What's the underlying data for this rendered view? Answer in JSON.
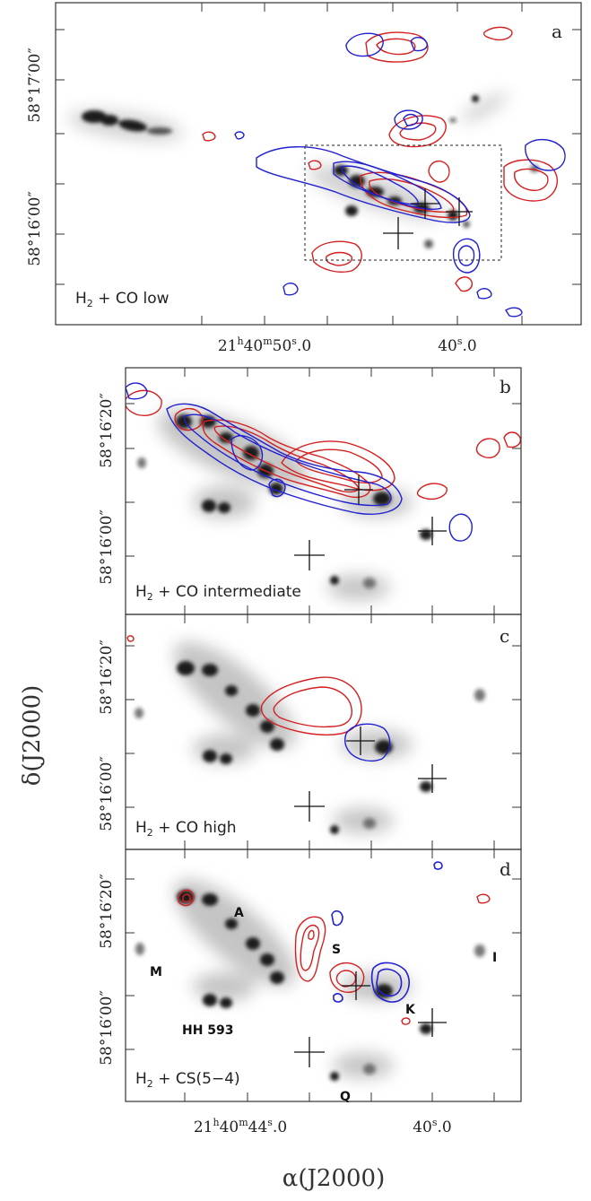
{
  "chart_data": [
    {
      "type": "contour",
      "panel": "a",
      "caption": "H₂ + CO low",
      "x_ticks": [
        {
          "ra_s": 50.0,
          "label": "21h40m50ˢ.0"
        },
        {
          "ra_s": 40.0,
          "label": "40ˢ.0"
        }
      ],
      "y_ticks": [
        {
          "dec_s": 60,
          "label": "58°17′00″"
        },
        {
          "dec_s": 0,
          "label": "58°16′00″"
        }
      ],
      "has_zoom_box": true,
      "contour_colors": [
        "#d42020",
        "#2020d0"
      ]
    },
    {
      "type": "contour",
      "panel": "b",
      "caption": "H₂ + CO intermediate",
      "y_ticks": [
        {
          "dec_s": 20,
          "label": "58°16′20″"
        },
        {
          "dec_s": 0,
          "label": "58°16′00″"
        }
      ]
    },
    {
      "type": "contour",
      "panel": "c",
      "caption": "H₂ + CO high",
      "y_ticks": [
        {
          "dec_s": 20,
          "label": "58°16′20″"
        },
        {
          "dec_s": 0,
          "label": "58°16′00″"
        }
      ]
    },
    {
      "type": "contour",
      "panel": "d",
      "caption": "H₂ + CS(5−4)",
      "x_ticks": [
        {
          "ra_s": 44.0,
          "label": "21h40m44ˢ.0"
        },
        {
          "ra_s": 40.0,
          "label": "40ˢ.0"
        }
      ],
      "y_ticks": [
        {
          "dec_s": 20,
          "label": "58°16′20″"
        },
        {
          "dec_s": 0,
          "label": "58°16′00″"
        }
      ],
      "source_labels": [
        "A",
        "M",
        "S",
        "K",
        "I",
        "HH 593",
        "Q"
      ]
    }
  ],
  "axes": {
    "xlabel": "α(J2000)",
    "ylabel": "δ(J2000)"
  },
  "panels": {
    "a": {
      "letter": "a",
      "caption_main": "H",
      "caption_sub": "2",
      "caption_rest": " + CO low",
      "xtick_1_hm": "21",
      "xtick_1_h": "h",
      "xtick_1_m": "40",
      "xtick_1_mm": "m",
      "xtick_1_s": "50",
      "xtick_1_ss": "s",
      "xtick_1_f": ".0",
      "xtick_2_s": "40",
      "xtick_2_ss": "s",
      "xtick_2_f": ".0",
      "ytick_1": "58°17′00″",
      "ytick_2": "58°16′00″"
    },
    "b": {
      "letter": "b",
      "caption_main": "H",
      "caption_sub": "2",
      "caption_rest": " + CO intermediate",
      "ytick_1": "58°16′20″",
      "ytick_2": "58°16′00″"
    },
    "c": {
      "letter": "c",
      "caption_main": "H",
      "caption_sub": "2",
      "caption_rest": " + CO high",
      "ytick_1": "58°16′20″",
      "ytick_2": "58°16′00″"
    },
    "d": {
      "letter": "d",
      "caption_main": "H",
      "caption_sub": "2",
      "caption_rest": " + CS(5−4)",
      "xtick_1_hm": "21",
      "xtick_1_h": "h",
      "xtick_1_m": "40",
      "xtick_1_mm": "m",
      "xtick_1_s": "44",
      "xtick_1_ss": "s",
      "xtick_1_f": ".0",
      "xtick_2_s": "40",
      "xtick_2_ss": "s",
      "xtick_2_f": ".0",
      "ytick_1": "58°16′20″",
      "ytick_2": "58°16′00″",
      "src_A": "A",
      "src_M": "M",
      "src_S": "S",
      "src_K": "K",
      "src_I": "I",
      "src_HH": "HH 593",
      "src_Q": "Q"
    }
  },
  "colors": {
    "red_contour": "#d42020",
    "blue_contour": "#2020d0",
    "frame": "#333333",
    "emission": "#1a1a1a"
  }
}
